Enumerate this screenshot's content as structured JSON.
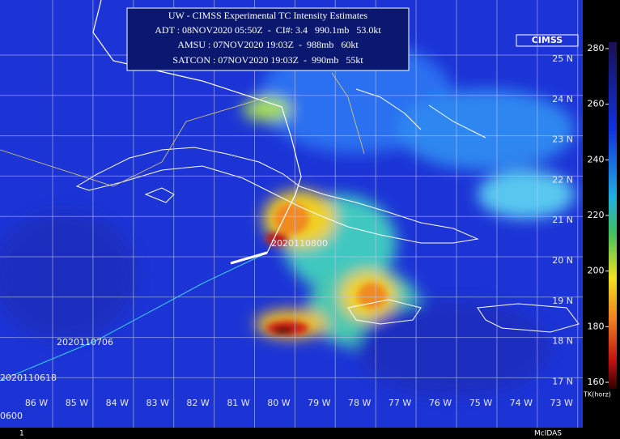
{
  "header": {
    "title": "UW - CIMSS Experimental TC Intensity Estimates",
    "lines": [
      "ADT : 08NOV2020 05:50Z  -  CI#: 3.4   990.1mb   53.0kt",
      "AMSU : 07NOV2020 19:03Z  -  988mb   60kt",
      "SATCON : 07NOV2020 19:03Z  -  990mb   55kt"
    ]
  },
  "latitude_labels": [
    "25 N",
    "24 N",
    "23 N",
    "22 N",
    "21 N",
    "20 N",
    "19 N",
    "18 N",
    "17 N"
  ],
  "longitude_labels": [
    "86 W",
    "85 W",
    "84 W",
    "83 W",
    "82 W",
    "81 W",
    "80 W",
    "79 W",
    "78 W",
    "77 W",
    "76 W",
    "75 W",
    "74 W",
    "73 W"
  ],
  "track_labels": [
    "2020110800",
    "2020110706",
    "2020110618",
    "0600"
  ],
  "colorbar": {
    "ticks": [
      280,
      260,
      240,
      220,
      200,
      180,
      160
    ],
    "label": "TK(horz)"
  },
  "logo": "CIMSS",
  "footer": {
    "frame": "1",
    "software": "McIDAS"
  }
}
